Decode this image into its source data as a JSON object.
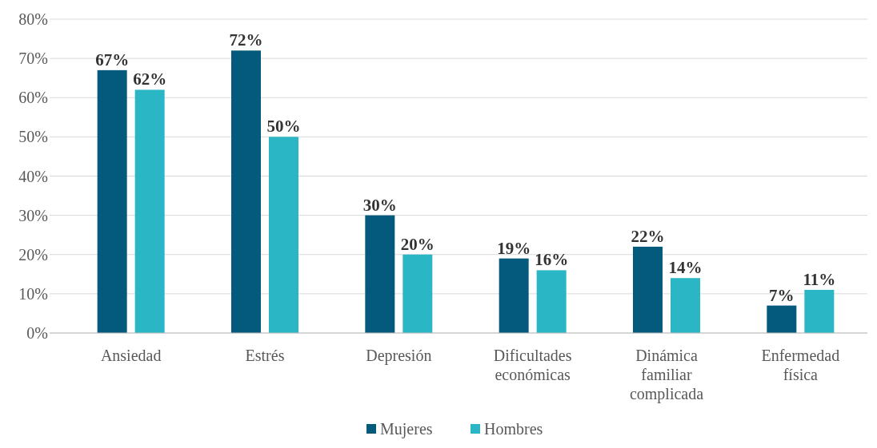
{
  "chart_data": {
    "type": "bar",
    "categories": [
      "Ansiedad",
      "Estrés",
      "Depresión",
      "Dificultades económicas",
      "Dinámica familiar complicada",
      "Enfermedad física"
    ],
    "series": [
      {
        "name": "Mujeres",
        "color": "#045a7d",
        "values": [
          67,
          72,
          30,
          19,
          22,
          7
        ],
        "value_labels": [
          "67%",
          "72%",
          "30%",
          "19%",
          "22%",
          "7%"
        ]
      },
      {
        "name": "Hombres",
        "color": "#2bb6c6",
        "values": [
          62,
          50,
          20,
          16,
          14,
          11
        ],
        "value_labels": [
          "62%",
          "50%",
          "20%",
          "16%",
          "14%",
          "11%"
        ]
      }
    ],
    "ylim": [
      0,
      80
    ],
    "yticks": [
      {
        "value": 0,
        "label": "0%"
      },
      {
        "value": 10,
        "label": "10%"
      },
      {
        "value": 20,
        "label": "20%"
      },
      {
        "value": 30,
        "label": "30%"
      },
      {
        "value": 40,
        "label": "40%"
      },
      {
        "value": 50,
        "label": "50%"
      },
      {
        "value": 60,
        "label": "60%"
      },
      {
        "value": 70,
        "label": "70%"
      },
      {
        "value": 80,
        "label": "80%"
      }
    ],
    "grid": "y",
    "legend": "bottom"
  }
}
